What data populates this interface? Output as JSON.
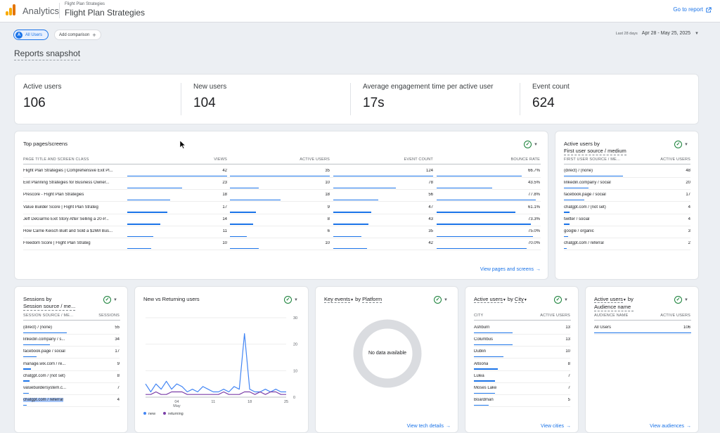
{
  "app": {
    "name": "Analytics",
    "property_small": "Flight Plan Strategies",
    "property_name": "Flight Plan Strategies",
    "go_to_report": "Go to report"
  },
  "comparison": {
    "user_avatar": "A",
    "all_users": "All Users",
    "add_comparison": "Add comparison",
    "date_label": "Last 28 days",
    "date_range": "Apr 28 - May 25, 2025"
  },
  "snapshot_title": "Reports snapshot",
  "metrics": [
    {
      "label": "Active users",
      "value": "106"
    },
    {
      "label": "New users",
      "value": "104"
    },
    {
      "label": "Average engagement time per active user",
      "value": "17s"
    },
    {
      "label": "Event count",
      "value": "624"
    }
  ],
  "top_pages": {
    "title": "Top pages/screens",
    "headers": [
      "PAGE TITLE AND SCREEN CLASS",
      "VIEWS",
      "ACTIVE USERS",
      "EVENT COUNT",
      "BOUNCE RATE"
    ],
    "rows": [
      {
        "title": "Flight Plan Strategies | Comprehensive Exit Pl...",
        "views": "42",
        "users": "35",
        "events": "124",
        "bounce": "66.7%",
        "f": [
          1.0,
          1.0,
          1.0,
          0.82
        ]
      },
      {
        "title": "Exit Planning Strategies for Business Owner...",
        "views": "23",
        "users": "10",
        "events": "78",
        "bounce": "43.5%",
        "f": [
          0.55,
          0.29,
          0.63,
          0.54
        ]
      },
      {
        "title": "Prescore - Flight Plan Strategies",
        "views": "18",
        "users": "18",
        "events": "56",
        "bounce": "77.8%",
        "f": [
          0.43,
          0.51,
          0.45,
          0.96
        ]
      },
      {
        "title": "Value Builder Score | Flight Plan Strateg",
        "views": "17",
        "users": "9",
        "events": "47",
        "bounce": "61.1%",
        "f": [
          0.4,
          0.26,
          0.38,
          0.76
        ]
      },
      {
        "title": "Jeff DeGarmo Exit Story After Selling a 20-P...",
        "views": "14",
        "users": "8",
        "events": "43",
        "bounce": "73.3%",
        "f": [
          0.33,
          0.23,
          0.35,
          0.91
        ]
      },
      {
        "title": "How Carrie Keisch Built and Sold a $26M Bus...",
        "views": "11",
        "users": "6",
        "events": "35",
        "bounce": "75.0%",
        "f": [
          0.26,
          0.17,
          0.28,
          0.93
        ]
      },
      {
        "title": "Freedom Score | Flight Plan Strateg",
        "views": "10",
        "users": "10",
        "events": "42",
        "bounce": "70.0%",
        "f": [
          0.24,
          0.29,
          0.34,
          0.87
        ]
      }
    ],
    "link": "View pages and screens"
  },
  "first_source": {
    "title_line1": "Active users by",
    "title_line2": "First user source / medium",
    "headers": [
      "FIRST USER SOURCE / ME...",
      "ACTIVE USERS"
    ],
    "rows": [
      {
        "label": "(direct) / (none)",
        "value": "48",
        "f": 1.0
      },
      {
        "label": "linkedin.company / social",
        "value": "20",
        "f": 0.42
      },
      {
        "label": "facebook.page / social",
        "value": "17",
        "f": 0.35
      },
      {
        "label": "chatgpt.com / (not set)",
        "value": "4",
        "f": 0.09
      },
      {
        "label": "twitter / social",
        "value": "4",
        "f": 0.09
      },
      {
        "label": "google / organic",
        "value": "3",
        "f": 0.07
      },
      {
        "label": "chatgpt.com / referral",
        "value": "2",
        "f": 0.05
      }
    ]
  },
  "sessions": {
    "title_line1": "Sessions by",
    "title_line2": "Session source / me...",
    "headers": [
      "SESSION SOURCE / ME...",
      "SESSIONS"
    ],
    "rows": [
      {
        "label": "(direct) / (none)",
        "value": "55",
        "f": 1.0
      },
      {
        "label": "linkedin.company / s...",
        "value": "34",
        "f": 0.62
      },
      {
        "label": "facebook.page / social",
        "value": "17",
        "f": 0.31
      },
      {
        "label": "manage.wix.com / re...",
        "value": "9",
        "f": 0.17
      },
      {
        "label": "chatgpt.com / (not set)",
        "value": "8",
        "f": 0.15
      },
      {
        "label": "valuebuildersystem.c...",
        "value": "7",
        "f": 0.13
      },
      {
        "label": "chatgpt.com / referral",
        "value": "4",
        "f": 0.08
      }
    ]
  },
  "new_vs_returning": {
    "title": "New vs Returning users",
    "chart_data": {
      "type": "line",
      "x": [
        28,
        29,
        30,
        1,
        2,
        3,
        4,
        5,
        6,
        7,
        8,
        9,
        10,
        11,
        12,
        13,
        14,
        15,
        16,
        17,
        18,
        19,
        20,
        21,
        22,
        23,
        24,
        25
      ],
      "x_tick_labels": [
        "04",
        "May",
        "11",
        "18",
        "25"
      ],
      "y_ticks": [
        "30",
        "20",
        "10",
        "0"
      ],
      "ylim": [
        0,
        30
      ],
      "series": [
        {
          "name": "new",
          "color": "#4285f4",
          "values": [
            5,
            2,
            5,
            3,
            6,
            3,
            5,
            4,
            2,
            3,
            2,
            4,
            3,
            2,
            2,
            3,
            2,
            4,
            3,
            24,
            3,
            2,
            2,
            3,
            2,
            3,
            2,
            2
          ]
        },
        {
          "name": "returning",
          "color": "#7b3fa8",
          "values": [
            1,
            1,
            2,
            1,
            1,
            2,
            2,
            2,
            1,
            1,
            1,
            1,
            1,
            1,
            1,
            2,
            1,
            1,
            1,
            2,
            2,
            1,
            2,
            1,
            2,
            2,
            1,
            1
          ]
        }
      ],
      "legend_position": "bottom-left"
    }
  },
  "key_events": {
    "title_pre": "Key events",
    "title_post": " by ",
    "title_dim": "Platform",
    "no_data": "No data available",
    "link": "View tech details"
  },
  "cities": {
    "title_pre": "Active users",
    "title_post": " by ",
    "title_dim": "City",
    "headers": [
      "CITY",
      "ACTIVE USERS"
    ],
    "rows": [
      {
        "label": "Ashburn",
        "value": "13",
        "f": 1.0
      },
      {
        "label": "Columbus",
        "value": "13",
        "f": 1.0
      },
      {
        "label": "Dublin",
        "value": "10",
        "f": 0.77
      },
      {
        "label": "Altoona",
        "value": "8",
        "f": 0.62
      },
      {
        "label": "Lulea",
        "value": "7",
        "f": 0.54
      },
      {
        "label": "Moses Lake",
        "value": "7",
        "f": 0.54
      },
      {
        "label": "Boardman",
        "value": "5",
        "f": 0.38
      }
    ],
    "link": "View cities"
  },
  "audience": {
    "title_line1": "Active users",
    "title_mid": " by",
    "title_line2": "Audience name",
    "headers": [
      "AUDIENCE NAME",
      "ACTIVE USERS"
    ],
    "rows": [
      {
        "label": "All Users",
        "value": "106",
        "f": 1.0
      }
    ],
    "link": "View audiences"
  },
  "colors": {
    "accent": "#1a73e8",
    "check": "#188038",
    "new": "#4285f4",
    "returning": "#7b3fa8"
  }
}
